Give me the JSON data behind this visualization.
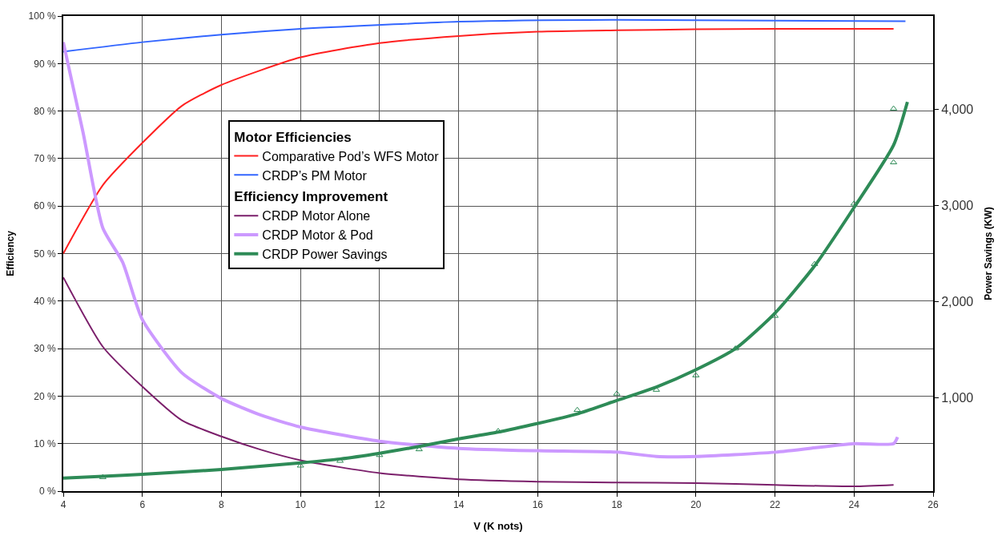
{
  "chart_data": {
    "type": "line",
    "xlabel": "V (K nots)",
    "ylabel": "Efficiency",
    "y2label": "Power Savings (KW)",
    "legend_title": [
      "Motor Efficiencies",
      "Efficiency Improvement"
    ],
    "xlim": [
      4,
      26
    ],
    "xticks": [
      4,
      6,
      8,
      10,
      12,
      14,
      16,
      18,
      20,
      22,
      24,
      26
    ],
    "ylim": [
      0,
      100
    ],
    "yticks": [
      {
        "value": 0,
        "label": "0 %"
      },
      {
        "value": 10,
        "label": "10 %"
      },
      {
        "value": 20,
        "label": "20 %"
      },
      {
        "value": 30,
        "label": "30 %"
      },
      {
        "value": 40,
        "label": "40 %"
      },
      {
        "value": 50,
        "label": "50 %"
      },
      {
        "value": 60,
        "label": "60 %"
      },
      {
        "value": 70,
        "label": "70 %"
      },
      {
        "value": 80,
        "label": "80 %"
      },
      {
        "value": 90,
        "label": "90 %"
      },
      {
        "value": 100,
        "label": "100 %"
      }
    ],
    "y2lim": [
      25,
      4975
    ],
    "y2ticks": [
      {
        "value": 1000,
        "label": "1,000"
      },
      {
        "value": 2000,
        "label": "2,000"
      },
      {
        "value": 3000,
        "label": "3,000"
      },
      {
        "value": 4000,
        "label": "4,000"
      }
    ],
    "grid": true,
    "legend": "top left",
    "marker": "none",
    "line_style": "solid",
    "series": [
      {
        "name": "Comparative Pod’s WFS Motor",
        "color": "#ff2020",
        "x": [
          4,
          5,
          6,
          7,
          8,
          10,
          12,
          14,
          16,
          18,
          20,
          22,
          25
        ],
        "values": [
          50,
          64.4,
          73.3,
          81.1,
          85.5,
          91.3,
          94.3,
          95.8,
          96.7,
          97,
          97.2,
          97.3,
          97.3
        ]
      },
      {
        "name": "CRDP’s PM Motor",
        "color": "#3366ff",
        "x": [
          4,
          6,
          8,
          10,
          14,
          18,
          25.3
        ],
        "values": [
          92.5,
          94.5,
          96.1,
          97.3,
          98.8,
          99.2,
          98.9
        ]
      },
      {
        "name": "CRDP Motor Alone",
        "color": "#7b1f6b",
        "x": [
          4,
          5,
          6,
          7,
          8,
          9,
          10,
          12,
          14,
          16,
          18,
          20,
          22,
          24,
          25
        ],
        "values": [
          45,
          30.4,
          22,
          14.9,
          11.5,
          8.7,
          6.5,
          3.8,
          2.5,
          2,
          1.8,
          1.7,
          1.3,
          1,
          1.3
        ]
      },
      {
        "name": "CRDP Motor & Pod",
        "color": "#cc99ff",
        "x": [
          4,
          4.5,
          5,
          5.5,
          6,
          7,
          8,
          9,
          10,
          12,
          14,
          16,
          18,
          19,
          20,
          22,
          24,
          25,
          25.1
        ],
        "values": [
          94.5,
          75.5,
          55.4,
          48.2,
          36.1,
          24.9,
          19.5,
          16,
          13.5,
          10.5,
          9,
          8.5,
          8.2,
          7.3,
          7.3,
          8.2,
          10,
          10,
          11.4
        ]
      },
      {
        "name": "CRDP Power Savings",
        "axis": "y2",
        "color": "#2e8b57",
        "x": [
          4,
          5,
          6,
          8,
          10,
          11,
          12,
          13,
          14,
          15,
          16,
          17,
          18,
          19,
          20,
          21,
          22,
          23,
          24,
          25,
          25.35
        ],
        "values": [
          160,
          180,
          200,
          250,
          320,
          360,
          420,
          490,
          570,
          640,
          730,
          830,
          970,
          1110,
          1290,
          1510,
          1880,
          2370,
          2980,
          3630,
          4080
        ]
      },
      {
        "type": "scatter",
        "axis": "y2",
        "marker": "triangle",
        "color": "#2e8b57",
        "x": [
          5,
          10,
          11,
          12,
          13,
          15,
          17,
          18,
          19,
          20,
          21,
          22,
          23,
          24,
          25,
          25
        ],
        "values": [
          170,
          290,
          340,
          400,
          460,
          650,
          870,
          1040,
          1080,
          1230,
          1510,
          1850,
          2390,
          3020,
          3450,
          4010
        ]
      }
    ]
  }
}
